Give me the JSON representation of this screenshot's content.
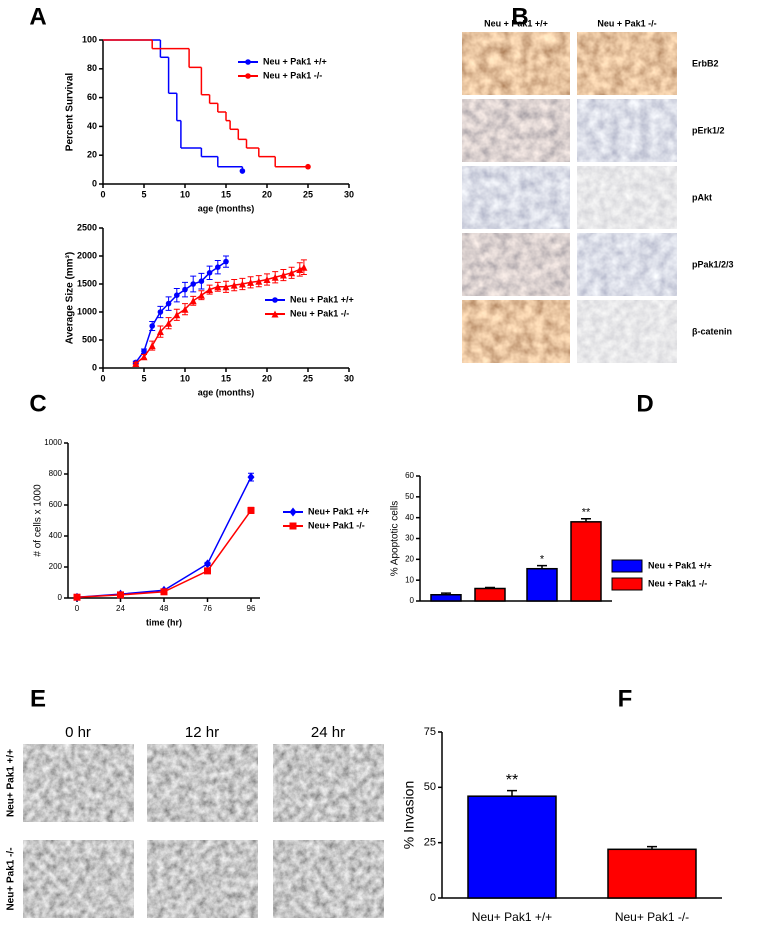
{
  "panel_labels": [
    "A",
    "B",
    "C",
    "D",
    "E",
    "F"
  ],
  "chart_data": [
    {
      "type": "step",
      "ylabel": "Percent Survival",
      "xlabel": "age (months)",
      "xlim": [
        0,
        30
      ],
      "xticks": [
        0,
        5,
        10,
        15,
        20,
        25,
        30
      ],
      "ylim": [
        0,
        100
      ],
      "yticks": [
        0,
        20,
        40,
        60,
        80,
        100
      ],
      "series": [
        {
          "name": "Neu + Pak1 +/+",
          "color": "#0000ff",
          "marker": "circle",
          "x": [
            0,
            7,
            8,
            9,
            9.5,
            12,
            14,
            17
          ],
          "values": [
            100,
            88,
            63,
            44,
            25,
            19,
            12,
            9
          ]
        },
        {
          "name": "Neu + Pak1 -/-",
          "color": "#ff0000",
          "marker": "circle",
          "x": [
            0,
            6,
            10.5,
            12,
            13,
            14,
            15,
            15.5,
            16.5,
            17.5,
            19,
            21,
            25
          ],
          "values": [
            100,
            94,
            81,
            62,
            56,
            50,
            44,
            38,
            31,
            25,
            19,
            12,
            12
          ]
        }
      ]
    },
    {
      "type": "line",
      "ylabel": "Average Size (mm³)",
      "xlabel": "age (months)",
      "xlim": [
        0,
        30
      ],
      "xticks": [
        0,
        5,
        10,
        15,
        20,
        25,
        30
      ],
      "ylim": [
        0,
        2500
      ],
      "yticks": [
        0,
        500,
        1000,
        1500,
        2000,
        2500
      ],
      "series": [
        {
          "name": "Neu + Pak1 +/+",
          "color": "#0000ff",
          "marker": "circle",
          "x": [
            4,
            5,
            6,
            7,
            8,
            9,
            10,
            11,
            12,
            13,
            14,
            15
          ],
          "values": [
            100,
            300,
            750,
            1000,
            1150,
            1300,
            1400,
            1500,
            1550,
            1700,
            1800,
            1900
          ],
          "errors": [
            20,
            40,
            80,
            100,
            120,
            120,
            130,
            140,
            140,
            120,
            120,
            100
          ]
        },
        {
          "name": "Neu + Pak1 -/-",
          "color": "#ff0000",
          "marker": "triangle",
          "x": [
            4,
            5,
            6,
            7,
            8,
            9,
            10,
            11,
            12,
            13,
            14,
            15,
            16,
            17,
            18,
            19,
            20,
            21,
            22,
            23,
            24,
            24.5
          ],
          "values": [
            80,
            200,
            400,
            650,
            800,
            950,
            1050,
            1200,
            1300,
            1400,
            1450,
            1450,
            1480,
            1500,
            1530,
            1550,
            1580,
            1620,
            1660,
            1700,
            1760,
            1800
          ],
          "errors": [
            20,
            40,
            80,
            100,
            100,
            100,
            100,
            80,
            80,
            80,
            80,
            100,
            100,
            100,
            100,
            100,
            100,
            100,
            100,
            100,
            120,
            130
          ]
        }
      ]
    },
    {
      "type": "line",
      "ylabel": "# of cells x 1000",
      "xlabel": "time (hr)",
      "categories": [
        "0",
        "24",
        "48",
        "76",
        "96"
      ],
      "ylim": [
        0,
        1000
      ],
      "yticks": [
        0,
        200,
        400,
        600,
        800,
        1000
      ],
      "series": [
        {
          "name": "Neu+ Pak1 +/+",
          "color": "#0000ff",
          "marker": "diamond",
          "values": [
            5,
            25,
            50,
            220,
            780
          ],
          "errors": [
            2,
            3,
            5,
            10,
            25
          ]
        },
        {
          "name": "Neu+ Pak1 -/-",
          "color": "#ff0000",
          "marker": "square",
          "values": [
            5,
            20,
            40,
            175,
            565
          ],
          "errors": [
            2,
            3,
            5,
            12,
            20
          ]
        }
      ]
    },
    {
      "type": "bar",
      "ylabel": "% Apoptotic cells",
      "categories": [
        null,
        null
      ],
      "ylim": [
        0,
        60
      ],
      "yticks": [
        0,
        10,
        20,
        30,
        40,
        50,
        60
      ],
      "series": [
        {
          "name": "Neu + Pak1 +/+",
          "color": "#0000ff",
          "values": [
            3,
            15.5
          ],
          "errors": [
            0.8,
            1.5
          ]
        },
        {
          "name": "Neu + Pak1 -/-",
          "color": "#ff0000",
          "values": [
            6,
            38
          ],
          "errors": [
            0.5,
            1.5
          ]
        }
      ],
      "annotations": [
        "*",
        "**"
      ]
    },
    {
      "type": "bar",
      "ylabel": "% Invasion",
      "categories": [
        "Neu+  Pak1 +/+",
        "Neu+  Pak1 -/-"
      ],
      "ylim": [
        0,
        75
      ],
      "yticks": [
        0,
        25,
        50,
        75
      ],
      "values": [
        46,
        22
      ],
      "errors": [
        2.5,
        1.2
      ],
      "colors": [
        "#0000ff",
        "#ff0000"
      ],
      "annotations": [
        "**"
      ]
    }
  ],
  "ihc": {
    "columns": [
      "Neu + Pak1 +/+",
      "Neu + Pak1 -/-"
    ],
    "rows": [
      "ErbB2",
      "pErk1/2",
      "pAkt",
      "pPak1/2/3",
      "β-catenin"
    ]
  },
  "migration": {
    "columns": [
      "0 hr",
      "12 hr",
      "24 hr"
    ],
    "rows": [
      "Neu+ Pak1 +/+",
      "Neu+  Pak1 -/-"
    ]
  }
}
